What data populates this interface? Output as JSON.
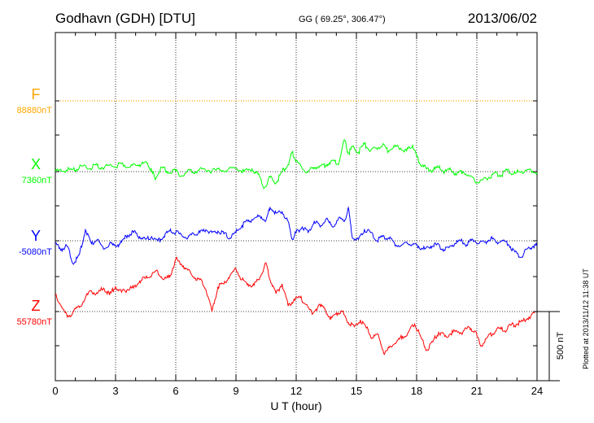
{
  "header": {
    "station": "Godhavn (GDH)  [DTU]",
    "coords": "GG ( 69.25°, 306.47°)",
    "date": "2013/06/02"
  },
  "footer": {
    "plotted_note": "Plotted at 2013/11/12 11:38 UT"
  },
  "colors": {
    "F": "#ffa500",
    "X": "#00ff00",
    "Y": "#0000ff",
    "Z": "#ff0000",
    "axis": "#000000"
  },
  "chart_data": {
    "type": "line",
    "title": "Godhavn (GDH)  [DTU]",
    "xlabel": "U T (hour)",
    "ylabel": "",
    "xlim": [
      0,
      24
    ],
    "x_ticks": [
      "0",
      "3",
      "6",
      "9",
      "12",
      "15",
      "18",
      "21",
      "24"
    ],
    "grid": true,
    "scale_bar": {
      "label": "500 nT",
      "value_nT": 500
    },
    "series": [
      {
        "name": "F",
        "baseline_label": "88880nT",
        "baseline_nT": 88880,
        "x": [
          0,
          24
        ],
        "values": [
          0,
          0
        ]
      },
      {
        "name": "X",
        "baseline_label": "7360nT",
        "baseline_nT": 7360,
        "x": [
          0,
          0.3,
          0.7,
          1.0,
          1.3,
          1.7,
          2.0,
          2.3,
          2.7,
          3.0,
          3.3,
          3.7,
          4.0,
          4.3,
          4.6,
          4.8,
          5.0,
          5.3,
          5.6,
          6.0,
          6.3,
          6.7,
          7.0,
          7.4,
          7.8,
          8.2,
          8.6,
          9.0,
          9.4,
          9.8,
          10.1,
          10.4,
          10.7,
          11.0,
          11.3,
          11.6,
          11.8,
          12.0,
          12.3,
          12.6,
          12.9,
          13.2,
          13.5,
          13.8,
          14.1,
          14.4,
          14.6,
          14.8,
          15.1,
          15.4,
          15.7,
          16.0,
          16.3,
          16.6,
          16.9,
          17.2,
          17.5,
          17.8,
          18.0,
          18.2,
          18.5,
          18.8,
          19.1,
          19.4,
          19.7,
          20.0,
          20.3,
          20.6,
          21.0,
          21.3,
          21.6,
          21.9,
          22.2,
          22.5,
          22.8,
          23.1,
          23.4,
          23.7,
          24.0
        ],
        "values": [
          0,
          5,
          15,
          10,
          40,
          20,
          50,
          30,
          45,
          35,
          60,
          30,
          45,
          55,
          60,
          0,
          -50,
          30,
          0,
          5,
          -30,
          10,
          0,
          20,
          5,
          10,
          15,
          25,
          0,
          20,
          -20,
          -120,
          -40,
          -80,
          0,
          50,
          140,
          80,
          20,
          0,
          30,
          40,
          50,
          80,
          50,
          230,
          130,
          180,
          140,
          200,
          150,
          170,
          190,
          150,
          180,
          170,
          150,
          190,
          110,
          50,
          20,
          10,
          30,
          0,
          15,
          -20,
          0,
          -30,
          -80,
          -60,
          -40,
          -10,
          -30,
          10,
          -20,
          0,
          5,
          10,
          -10
        ]
      },
      {
        "name": "Y",
        "baseline_label": "-5080nT",
        "baseline_nT": -5080,
        "x": [
          0,
          0.3,
          0.6,
          0.9,
          1.2,
          1.5,
          1.8,
          2.1,
          2.4,
          2.7,
          3.0,
          3.3,
          3.6,
          3.9,
          4.2,
          4.5,
          4.8,
          5.1,
          5.4,
          5.7,
          6.0,
          6.3,
          6.6,
          6.9,
          7.2,
          7.5,
          7.8,
          8.1,
          8.4,
          8.7,
          9.0,
          9.3,
          9.6,
          9.9,
          10.2,
          10.5,
          10.7,
          11.0,
          11.3,
          11.6,
          11.8,
          12.0,
          12.3,
          12.6,
          12.9,
          13.2,
          13.5,
          13.8,
          14.1,
          14.4,
          14.6,
          14.8,
          15.1,
          15.4,
          15.7,
          16.0,
          16.3,
          16.6,
          16.9,
          17.2,
          17.5,
          17.8,
          18.1,
          18.4,
          18.7,
          19.0,
          19.3,
          19.6,
          19.9,
          20.2,
          20.5,
          20.8,
          21.1,
          21.4,
          21.7,
          22.0,
          22.3,
          22.6,
          22.9,
          23.2,
          23.5,
          23.8,
          24.0
        ],
        "values": [
          -20,
          -60,
          -40,
          -170,
          -100,
          80,
          -20,
          10,
          -60,
          -20,
          -40,
          -10,
          40,
          60,
          30,
          10,
          30,
          0,
          30,
          70,
          60,
          40,
          20,
          50,
          60,
          80,
          60,
          70,
          50,
          20,
          60,
          110,
          140,
          160,
          180,
          150,
          240,
          200,
          210,
          140,
          10,
          60,
          100,
          60,
          140,
          100,
          160,
          100,
          160,
          140,
          240,
          20,
          10,
          80,
          60,
          0,
          30,
          20,
          -20,
          -40,
          -10,
          -30,
          -40,
          -60,
          -40,
          -30,
          -60,
          -50,
          -20,
          0,
          -30,
          10,
          -20,
          -10,
          20,
          -10,
          0,
          -30,
          -80,
          -120,
          -60,
          -40,
          -30
        ]
      },
      {
        "name": "Z",
        "baseline_label": "55780nT",
        "baseline_nT": 55780,
        "x": [
          0,
          0.3,
          0.6,
          0.9,
          1.2,
          1.5,
          1.8,
          2.1,
          2.4,
          2.7,
          3.0,
          3.3,
          3.6,
          3.9,
          4.2,
          4.5,
          4.8,
          5.1,
          5.4,
          5.7,
          6.0,
          6.3,
          6.6,
          6.9,
          7.2,
          7.5,
          7.8,
          8.1,
          8.4,
          8.7,
          9.0,
          9.3,
          9.6,
          9.9,
          10.2,
          10.5,
          10.7,
          11.0,
          11.3,
          11.6,
          11.9,
          12.2,
          12.5,
          12.8,
          13.1,
          13.4,
          13.7,
          14.0,
          14.3,
          14.6,
          14.9,
          15.2,
          15.5,
          15.8,
          16.1,
          16.4,
          16.7,
          17.0,
          17.3,
          17.6,
          17.9,
          18.2,
          18.5,
          18.8,
          19.1,
          19.4,
          19.7,
          20.0,
          20.3,
          20.6,
          20.9,
          21.2,
          21.5,
          21.8,
          22.1,
          22.4,
          22.7,
          23.0,
          23.3,
          23.6,
          24.0
        ],
        "values": [
          120,
          40,
          -40,
          0,
          30,
          100,
          150,
          130,
          170,
          120,
          180,
          140,
          160,
          170,
          220,
          240,
          260,
          290,
          230,
          250,
          380,
          340,
          300,
          250,
          230,
          160,
          0,
          180,
          200,
          260,
          310,
          230,
          200,
          190,
          250,
          350,
          230,
          130,
          200,
          40,
          90,
          100,
          50,
          -20,
          40,
          30,
          -60,
          -10,
          0,
          -80,
          -110,
          -60,
          -120,
          -190,
          -170,
          -310,
          -250,
          -220,
          -180,
          -150,
          -90,
          -180,
          -280,
          -220,
          -150,
          -180,
          -160,
          -140,
          -150,
          -110,
          -140,
          -250,
          -190,
          -160,
          -120,
          -140,
          -100,
          -90,
          -70,
          -40,
          0
        ]
      }
    ]
  }
}
